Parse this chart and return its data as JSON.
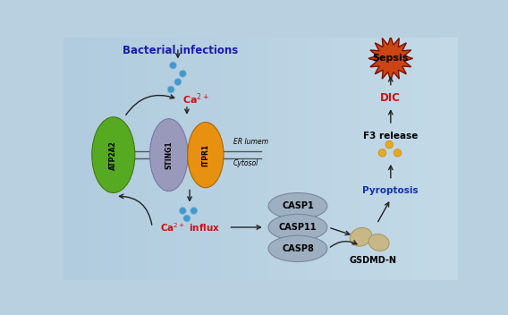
{
  "bg_color": "#b8d0e0",
  "title": "Bacterial infections",
  "title_color": "#1a1aaa",
  "er_lumen_label": "ER lumem",
  "cytosol_label": "Cytosol",
  "atp2a2_label": "ATP2A2",
  "sting1_label": "STING1",
  "itpr1_label": "ITPR1",
  "casp1_label": "CASP1",
  "casp11_label": "CASP11",
  "casp8_label": "CASP8",
  "gsdmd_label": "GSDMD-N",
  "pyroptosis_label": "Pyroptosis",
  "f3_release_label": "F3 release",
  "dic_label": "DIC",
  "sepsis_label": "Sepsis",
  "atp2a2_color": "#55aa22",
  "sting1_color": "#9999bb",
  "itpr1_color": "#e89010",
  "casp_color": "#9dafc0",
  "gsdmd_color": "#c8b888",
  "sepsis_color": "#cc4411",
  "blue_dot_color": "#4499cc",
  "gold_dot_color": "#e8a820",
  "red_label_color": "#cc1111",
  "blue_label_color": "#1133aa",
  "arrow_color": "#222222",
  "membrane_color": "#555555"
}
